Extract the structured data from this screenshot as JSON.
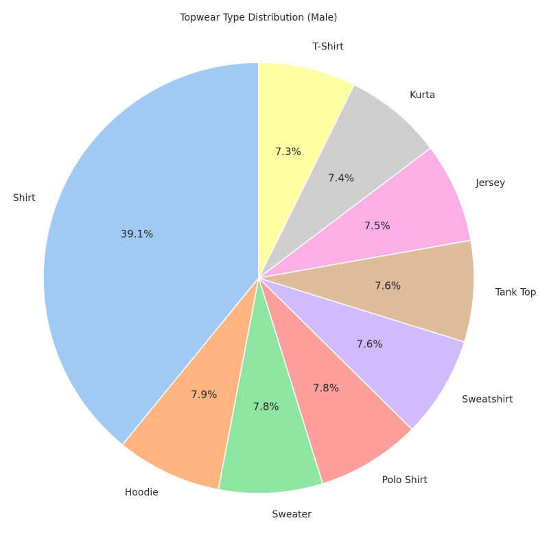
{
  "chart_data": {
    "type": "pie",
    "title": "Topwear Type Distribution (Male)",
    "categories": [
      "Shirt",
      "Hoodie",
      "Sweater",
      "Polo Shirt",
      "Sweatshirt",
      "Tank Top",
      "Jersey",
      "Kurta",
      "T-Shirt"
    ],
    "values": [
      39.1,
      7.9,
      7.8,
      7.8,
      7.6,
      7.6,
      7.5,
      7.4,
      7.3
    ],
    "value_labels": [
      "39.1%",
      "7.9%",
      "7.8%",
      "7.8%",
      "7.6%",
      "7.6%",
      "7.5%",
      "7.4%",
      "7.3%"
    ],
    "colors": [
      "#a1c9f4",
      "#ffb482",
      "#8de5a1",
      "#ff9f9b",
      "#d0bbff",
      "#debb9b",
      "#fab0e4",
      "#cfcfcf",
      "#fffea3"
    ],
    "start_angle_deg": 90,
    "direction": "counterclockwise",
    "legend": "none"
  }
}
